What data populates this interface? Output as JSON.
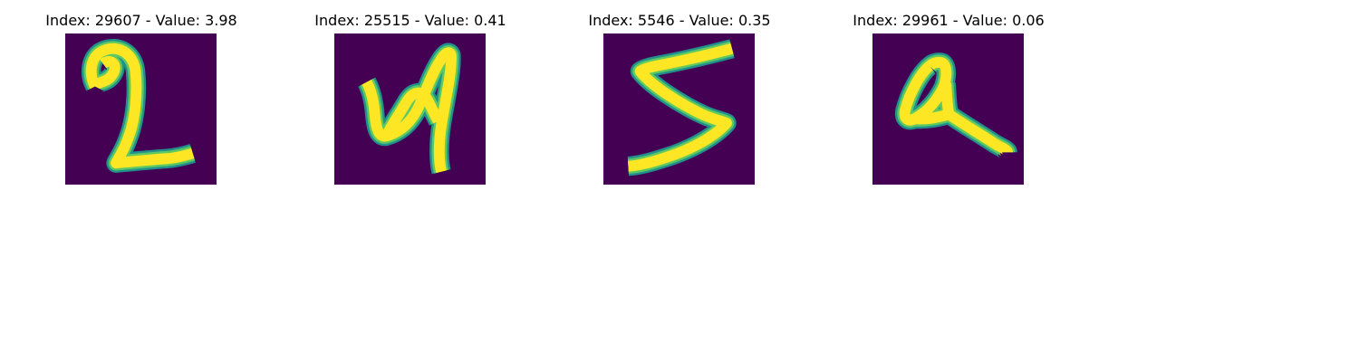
{
  "colors": {
    "background": "#440154",
    "stroke_edge": "#21918c",
    "stroke_mid": "#5ec962",
    "stroke_core": "#fde725"
  },
  "panels": [
    {
      "title": "Index: 29607 - Value: 3.98"
    },
    {
      "title": "Index: 25515 - Value: 0.41"
    },
    {
      "title": "Index: 5546 - Value: 0.35"
    },
    {
      "title": "Index: 29961 - Value: 0.06"
    }
  ]
}
